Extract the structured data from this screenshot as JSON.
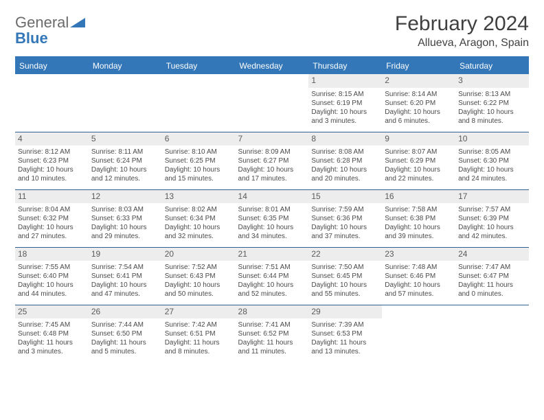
{
  "logo": {
    "general": "General",
    "blue": "Blue"
  },
  "title": "February 2024",
  "location": "Allueva, Aragon, Spain",
  "colors": {
    "accent": "#3377b8",
    "text": "#404040",
    "daybar": "#ededed"
  },
  "dayHeaders": [
    "Sunday",
    "Monday",
    "Tuesday",
    "Wednesday",
    "Thursday",
    "Friday",
    "Saturday"
  ],
  "weeks": [
    [
      null,
      null,
      null,
      null,
      {
        "n": "1",
        "sr": "Sunrise: 8:15 AM",
        "ss": "Sunset: 6:19 PM",
        "dl": "Daylight: 10 hours and 3 minutes."
      },
      {
        "n": "2",
        "sr": "Sunrise: 8:14 AM",
        "ss": "Sunset: 6:20 PM",
        "dl": "Daylight: 10 hours and 6 minutes."
      },
      {
        "n": "3",
        "sr": "Sunrise: 8:13 AM",
        "ss": "Sunset: 6:22 PM",
        "dl": "Daylight: 10 hours and 8 minutes."
      }
    ],
    [
      {
        "n": "4",
        "sr": "Sunrise: 8:12 AM",
        "ss": "Sunset: 6:23 PM",
        "dl": "Daylight: 10 hours and 10 minutes."
      },
      {
        "n": "5",
        "sr": "Sunrise: 8:11 AM",
        "ss": "Sunset: 6:24 PM",
        "dl": "Daylight: 10 hours and 12 minutes."
      },
      {
        "n": "6",
        "sr": "Sunrise: 8:10 AM",
        "ss": "Sunset: 6:25 PM",
        "dl": "Daylight: 10 hours and 15 minutes."
      },
      {
        "n": "7",
        "sr": "Sunrise: 8:09 AM",
        "ss": "Sunset: 6:27 PM",
        "dl": "Daylight: 10 hours and 17 minutes."
      },
      {
        "n": "8",
        "sr": "Sunrise: 8:08 AM",
        "ss": "Sunset: 6:28 PM",
        "dl": "Daylight: 10 hours and 20 minutes."
      },
      {
        "n": "9",
        "sr": "Sunrise: 8:07 AM",
        "ss": "Sunset: 6:29 PM",
        "dl": "Daylight: 10 hours and 22 minutes."
      },
      {
        "n": "10",
        "sr": "Sunrise: 8:05 AM",
        "ss": "Sunset: 6:30 PM",
        "dl": "Daylight: 10 hours and 24 minutes."
      }
    ],
    [
      {
        "n": "11",
        "sr": "Sunrise: 8:04 AM",
        "ss": "Sunset: 6:32 PM",
        "dl": "Daylight: 10 hours and 27 minutes."
      },
      {
        "n": "12",
        "sr": "Sunrise: 8:03 AM",
        "ss": "Sunset: 6:33 PM",
        "dl": "Daylight: 10 hours and 29 minutes."
      },
      {
        "n": "13",
        "sr": "Sunrise: 8:02 AM",
        "ss": "Sunset: 6:34 PM",
        "dl": "Daylight: 10 hours and 32 minutes."
      },
      {
        "n": "14",
        "sr": "Sunrise: 8:01 AM",
        "ss": "Sunset: 6:35 PM",
        "dl": "Daylight: 10 hours and 34 minutes."
      },
      {
        "n": "15",
        "sr": "Sunrise: 7:59 AM",
        "ss": "Sunset: 6:36 PM",
        "dl": "Daylight: 10 hours and 37 minutes."
      },
      {
        "n": "16",
        "sr": "Sunrise: 7:58 AM",
        "ss": "Sunset: 6:38 PM",
        "dl": "Daylight: 10 hours and 39 minutes."
      },
      {
        "n": "17",
        "sr": "Sunrise: 7:57 AM",
        "ss": "Sunset: 6:39 PM",
        "dl": "Daylight: 10 hours and 42 minutes."
      }
    ],
    [
      {
        "n": "18",
        "sr": "Sunrise: 7:55 AM",
        "ss": "Sunset: 6:40 PM",
        "dl": "Daylight: 10 hours and 44 minutes."
      },
      {
        "n": "19",
        "sr": "Sunrise: 7:54 AM",
        "ss": "Sunset: 6:41 PM",
        "dl": "Daylight: 10 hours and 47 minutes."
      },
      {
        "n": "20",
        "sr": "Sunrise: 7:52 AM",
        "ss": "Sunset: 6:43 PM",
        "dl": "Daylight: 10 hours and 50 minutes."
      },
      {
        "n": "21",
        "sr": "Sunrise: 7:51 AM",
        "ss": "Sunset: 6:44 PM",
        "dl": "Daylight: 10 hours and 52 minutes."
      },
      {
        "n": "22",
        "sr": "Sunrise: 7:50 AM",
        "ss": "Sunset: 6:45 PM",
        "dl": "Daylight: 10 hours and 55 minutes."
      },
      {
        "n": "23",
        "sr": "Sunrise: 7:48 AM",
        "ss": "Sunset: 6:46 PM",
        "dl": "Daylight: 10 hours and 57 minutes."
      },
      {
        "n": "24",
        "sr": "Sunrise: 7:47 AM",
        "ss": "Sunset: 6:47 PM",
        "dl": "Daylight: 11 hours and 0 minutes."
      }
    ],
    [
      {
        "n": "25",
        "sr": "Sunrise: 7:45 AM",
        "ss": "Sunset: 6:48 PM",
        "dl": "Daylight: 11 hours and 3 minutes."
      },
      {
        "n": "26",
        "sr": "Sunrise: 7:44 AM",
        "ss": "Sunset: 6:50 PM",
        "dl": "Daylight: 11 hours and 5 minutes."
      },
      {
        "n": "27",
        "sr": "Sunrise: 7:42 AM",
        "ss": "Sunset: 6:51 PM",
        "dl": "Daylight: 11 hours and 8 minutes."
      },
      {
        "n": "28",
        "sr": "Sunrise: 7:41 AM",
        "ss": "Sunset: 6:52 PM",
        "dl": "Daylight: 11 hours and 11 minutes."
      },
      {
        "n": "29",
        "sr": "Sunrise: 7:39 AM",
        "ss": "Sunset: 6:53 PM",
        "dl": "Daylight: 11 hours and 13 minutes."
      },
      null,
      null
    ]
  ]
}
